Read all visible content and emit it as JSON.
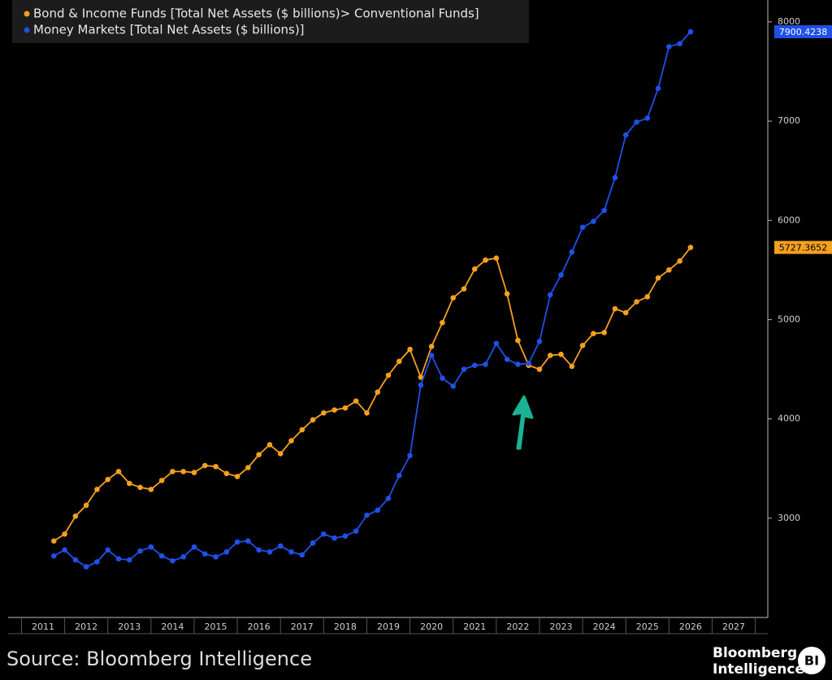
{
  "chart_data": {
    "type": "line",
    "legend": "top-left",
    "x": [
      2011.75,
      2012,
      2012.25,
      2012.5,
      2012.75,
      2013,
      2013.25,
      2013.5,
      2013.75,
      2014,
      2014.25,
      2014.5,
      2014.75,
      2015,
      2015.25,
      2015.5,
      2015.75,
      2016,
      2016.25,
      2016.5,
      2016.75,
      2017,
      2017.25,
      2017.5,
      2017.75,
      2018,
      2018.25,
      2018.5,
      2018.75,
      2019,
      2019.25,
      2019.5,
      2019.75,
      2020,
      2020.25,
      2020.5,
      2020.75,
      2021,
      2021.25,
      2021.5,
      2021.75,
      2022,
      2022.25,
      2022.5,
      2022.75,
      2023,
      2023.25,
      2023.5,
      2023.75,
      2024,
      2024.25,
      2024.5,
      2024.75,
      2025,
      2025.25,
      2025.5,
      2025.75,
      2026,
      2026.25,
      2026.5
    ],
    "series": [
      {
        "name": "Bond & Income Funds [Total Net Assets ($ billions)> Conventional Funds]",
        "color": "#f5a01e",
        "values": [
          2770,
          2840,
          3020,
          3130,
          3290,
          3390,
          3470,
          3350,
          3310,
          3290,
          3380,
          3470,
          3470,
          3460,
          3530,
          3520,
          3450,
          3420,
          3510,
          3640,
          3740,
          3650,
          3780,
          3890,
          3990,
          4060,
          4090,
          4110,
          4180,
          4060,
          4270,
          4440,
          4580,
          4700,
          4420,
          4730,
          4970,
          5220,
          5310,
          5510,
          5600,
          5620,
          5260,
          4790,
          4540,
          4500,
          4640,
          4650,
          4530,
          4740,
          4860,
          4870,
          5110,
          5070,
          5180,
          5230,
          5420,
          5500,
          5590,
          5727.3652
        ]
      },
      {
        "name": "Money Markets [Total Net Assets ($ billions)]",
        "color": "#1f50e8",
        "values": [
          2620,
          2680,
          2580,
          2510,
          2560,
          2680,
          2590,
          2580,
          2670,
          2710,
          2620,
          2570,
          2610,
          2710,
          2640,
          2610,
          2660,
          2760,
          2770,
          2680,
          2660,
          2720,
          2660,
          2630,
          2750,
          2840,
          2800,
          2820,
          2870,
          3030,
          3080,
          3200,
          3430,
          3630,
          4340,
          4640,
          4410,
          4330,
          4500,
          4540,
          4550,
          4760,
          4600,
          4550,
          4560,
          4780,
          5250,
          5450,
          5680,
          5930,
          5990,
          6100,
          6430,
          6860,
          6990,
          7030,
          7330,
          7750,
          7780,
          7900.4238
        ]
      }
    ],
    "xlim": [
      2010.69,
      2028.29
    ],
    "xticks": [
      {
        "value": 2011.5,
        "label": "2011"
      },
      {
        "value": 2012.5,
        "label": "2012"
      },
      {
        "value": 2013.5,
        "label": "2013"
      },
      {
        "value": 2014.5,
        "label": "2014"
      },
      {
        "value": 2015.5,
        "label": "2015"
      },
      {
        "value": 2016.5,
        "label": "2016"
      },
      {
        "value": 2017.5,
        "label": "2017"
      },
      {
        "value": 2018.5,
        "label": "2018"
      },
      {
        "value": 2019.5,
        "label": "2019"
      },
      {
        "value": 2020.5,
        "label": "2020"
      },
      {
        "value": 2021.5,
        "label": "2021"
      },
      {
        "value": 2022.5,
        "label": "2022"
      },
      {
        "value": 2023.5,
        "label": "2023"
      },
      {
        "value": 2024.5,
        "label": "2024"
      },
      {
        "value": 2025.5,
        "label": "2025"
      },
      {
        "value": 2026.5,
        "label": "2026"
      },
      {
        "value": 2027.5,
        "label": "2027"
      }
    ],
    "ylim": [
      2000,
      8220
    ],
    "yticks": [
      3000,
      4000,
      5000,
      6000,
      7000,
      8000
    ],
    "grid": false,
    "source": "Source: Bloomberg Intelligence",
    "logo": {
      "line1": "Bloomberg",
      "line2": "Intelligence",
      "badge": "BI"
    }
  }
}
